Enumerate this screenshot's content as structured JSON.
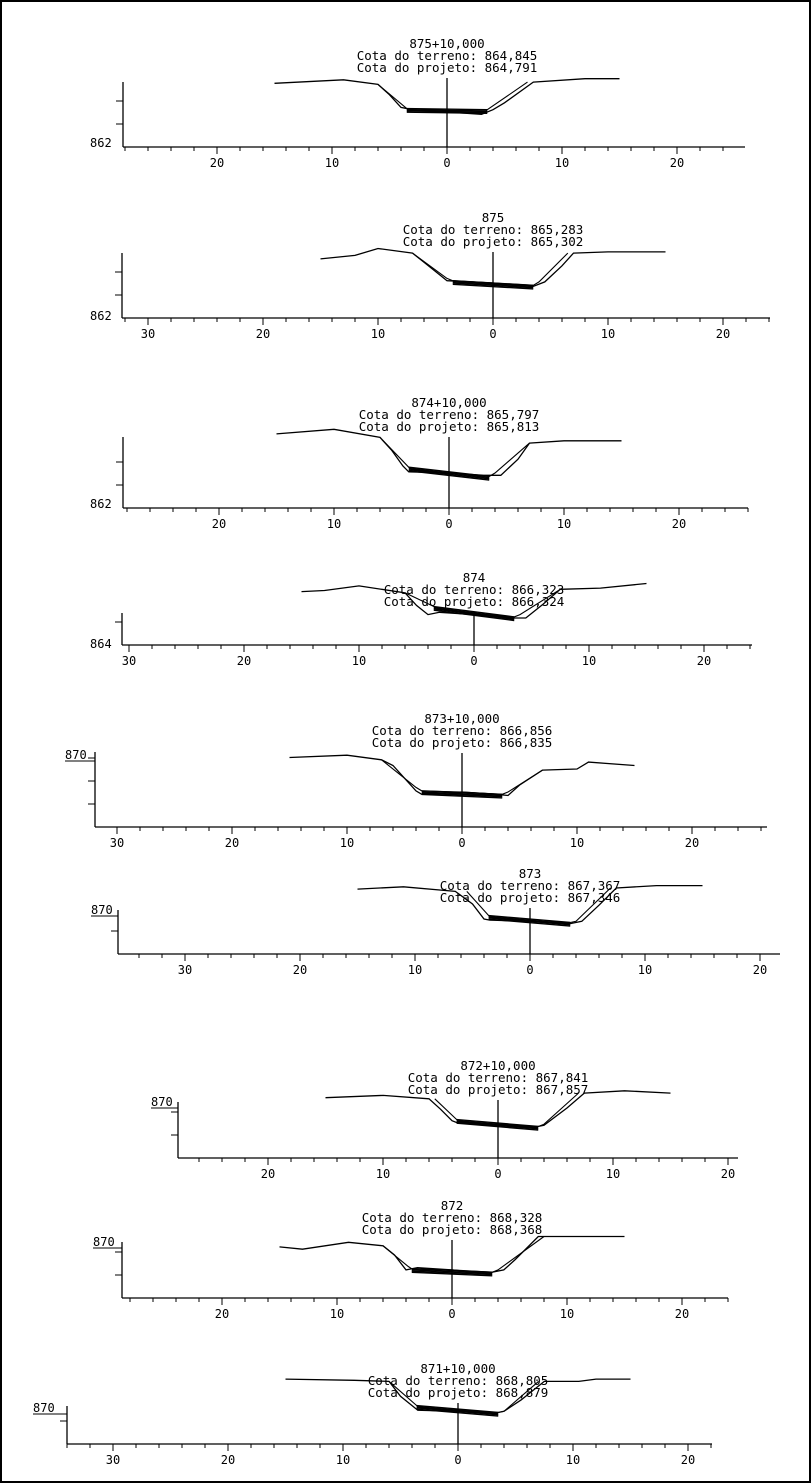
{
  "sheet": {
    "sections": [
      {
        "station": "875+10,000",
        "terrain_label": "Cota do terreno: 864,845",
        "project_label": "Cota do projeto: 864,791",
        "elevation_label": "862",
        "offset_labels": [
          "20",
          "10",
          "0",
          "10",
          "20"
        ],
        "terrain_profile": [
          [
            -15,
            2.5
          ],
          [
            -9,
            2.8
          ],
          [
            -6,
            2.4
          ],
          [
            -5,
            1.5
          ],
          [
            -4,
            0.4
          ],
          [
            -3,
            0.2
          ],
          [
            0,
            0.0
          ],
          [
            3,
            -0.2
          ],
          [
            4,
            0.2
          ],
          [
            5,
            0.8
          ],
          [
            7.5,
            2.6
          ],
          [
            12,
            2.9
          ],
          [
            15,
            2.9
          ]
        ],
        "project_profile": [
          [
            -6,
            2.4
          ],
          [
            -3.5,
            0.3
          ],
          [
            -3.2,
            0.1
          ],
          [
            0,
            0
          ],
          [
            3.2,
            -0.1
          ],
          [
            3.5,
            0.2
          ],
          [
            7,
            2.6
          ]
        ]
      },
      {
        "station": "875",
        "terrain_label": "Cota do terreno: 865,283",
        "project_label": "Cota do projeto: 865,302",
        "elevation_label": "862",
        "offset_labels": [
          "30",
          "20",
          "10",
          "0",
          "10",
          "20"
        ],
        "terrain_profile": [
          [
            -15,
            2.1
          ],
          [
            -12,
            2.4
          ],
          [
            -10,
            3.0
          ],
          [
            -7,
            2.6
          ],
          [
            -6,
            1.8
          ],
          [
            -4.5,
            0.6
          ],
          [
            -4,
            0.2
          ],
          [
            0,
            0
          ],
          [
            3.5,
            -0.3
          ],
          [
            4.5,
            0.1
          ],
          [
            6,
            1.5
          ],
          [
            7,
            2.6
          ],
          [
            10,
            2.7
          ],
          [
            15,
            2.7
          ]
        ],
        "project_profile": [
          [
            -7,
            2.6
          ],
          [
            -4,
            0.4
          ],
          [
            -3.5,
            0.2
          ],
          [
            0,
            0
          ],
          [
            3.5,
            -0.2
          ],
          [
            4,
            0.1
          ],
          [
            6.5,
            2.6
          ]
        ]
      },
      {
        "station": "874+10,000",
        "terrain_label": "Cota do terreno: 865,797",
        "project_label": "Cota do projeto: 865,813",
        "elevation_label": "862",
        "offset_labels": [
          "20",
          "10",
          "0",
          "10",
          "20"
        ],
        "terrain_profile": [
          [
            -15,
            3.4
          ],
          [
            -10,
            3.8
          ],
          [
            -6,
            3.1
          ],
          [
            -5,
            2.0
          ],
          [
            -4,
            0.6
          ],
          [
            -3.5,
            0.1
          ],
          [
            0,
            0
          ],
          [
            3,
            -0.2
          ],
          [
            4.5,
            -0.2
          ],
          [
            6,
            1.2
          ],
          [
            7,
            2.6
          ],
          [
            10,
            2.8
          ],
          [
            15,
            2.8
          ]
        ],
        "project_profile": [
          [
            -6,
            3.1
          ],
          [
            -3.5,
            0.5
          ],
          [
            -3.2,
            0.3
          ],
          [
            0,
            0
          ],
          [
            3.5,
            -0.3
          ],
          [
            4,
            0.0
          ],
          [
            7,
            2.6
          ]
        ]
      },
      {
        "station": "874",
        "terrain_label": "Cota do terreno: 866,323",
        "project_label": "Cota do projeto: 866,324",
        "elevation_label": "864",
        "offset_labels": [
          "30",
          "20",
          "10",
          "0",
          "10",
          "20"
        ],
        "terrain_profile": [
          [
            -15,
            1.6
          ],
          [
            -13,
            1.7
          ],
          [
            -10,
            2.1
          ],
          [
            -6,
            1.5
          ],
          [
            -5,
            0.4
          ],
          [
            -4,
            -0.4
          ],
          [
            -3,
            -0.2
          ],
          [
            0,
            -0.4
          ],
          [
            3,
            -0.7
          ],
          [
            4.5,
            -0.7
          ],
          [
            6,
            0.5
          ],
          [
            7.5,
            1.8
          ],
          [
            11,
            1.9
          ],
          [
            15,
            2.3
          ]
        ],
        "project_profile": [
          [
            -6,
            1.5
          ],
          [
            -3.5,
            0.3
          ],
          [
            -3,
            0.1
          ],
          [
            0,
            -0.3
          ],
          [
            3.5,
            -0.6
          ],
          [
            4,
            -0.4
          ],
          [
            7.5,
            1.8
          ]
        ]
      },
      {
        "station": "873+10,000",
        "terrain_label": "Cota do terreno: 866,856",
        "project_label": "Cota do projeto: 866,835",
        "elevation_label": "870",
        "offset_labels": [
          "30",
          "20",
          "10",
          "0",
          "10",
          "20"
        ],
        "terrain_profile": [
          [
            -15,
            3.0
          ],
          [
            -10,
            3.2
          ],
          [
            -7,
            2.8
          ],
          [
            -6,
            2.3
          ],
          [
            -5,
            1.2
          ],
          [
            -4,
            0.1
          ],
          [
            -3.5,
            -0.2
          ],
          [
            0,
            0
          ],
          [
            3,
            -0.2
          ],
          [
            4,
            -0.3
          ],
          [
            5,
            0.6
          ],
          [
            7,
            1.9
          ],
          [
            10,
            2.0
          ],
          [
            11,
            2.6
          ],
          [
            15,
            2.3
          ]
        ],
        "project_profile": [
          [
            -7,
            2.8
          ],
          [
            -4,
            0.4
          ],
          [
            -3.5,
            0.1
          ],
          [
            0,
            0
          ],
          [
            3.5,
            -0.2
          ],
          [
            4,
            0.0
          ],
          [
            7,
            1.9
          ]
        ]
      },
      {
        "station": "873",
        "terrain_label": "Cota do terreno: 867,367",
        "project_label": "Cota do projeto: 867,346",
        "elevation_label": "870",
        "offset_labels": [
          "30",
          "20",
          "10",
          "0",
          "10",
          "20"
        ],
        "terrain_profile": [
          [
            -15,
            2.6
          ],
          [
            -11,
            2.8
          ],
          [
            -6.5,
            2.4
          ],
          [
            -5,
            1.3
          ],
          [
            -4,
            0.0
          ],
          [
            -3.5,
            -0.1
          ],
          [
            0,
            -0.2
          ],
          [
            3.5,
            -0.4
          ],
          [
            4.5,
            -0.2
          ],
          [
            6,
            1.2
          ],
          [
            7.5,
            2.7
          ],
          [
            11,
            2.9
          ],
          [
            15,
            2.9
          ]
        ],
        "project_profile": [
          [
            -5.5,
            2.4
          ],
          [
            -3.6,
            0.3
          ],
          [
            -3.4,
            0.1
          ],
          [
            0,
            -0.2
          ],
          [
            3.5,
            -0.3
          ],
          [
            4,
            -0.2
          ],
          [
            7,
            2.7
          ]
        ]
      },
      {
        "station": "872+10,000",
        "terrain_label": "Cota do terreno: 867,841",
        "project_label": "Cota do projeto: 867,857",
        "elevation_label": "870",
        "offset_labels": [
          "20",
          "10",
          "0",
          "10",
          "20"
        ],
        "terrain_profile": [
          [
            -15,
            2.2
          ],
          [
            -10,
            2.4
          ],
          [
            -6,
            2.1
          ],
          [
            -5,
            1.2
          ],
          [
            -4,
            0.2
          ],
          [
            -3.5,
            0.0
          ],
          [
            0,
            -0.2
          ],
          [
            3,
            -0.4
          ],
          [
            4,
            -0.2
          ],
          [
            6,
            1.3
          ],
          [
            7.5,
            2.6
          ],
          [
            11,
            2.8
          ],
          [
            15,
            2.6
          ]
        ],
        "project_profile": [
          [
            -5.5,
            2.1
          ],
          [
            -3.6,
            0.3
          ],
          [
            -3.4,
            0.1
          ],
          [
            0,
            -0.1
          ],
          [
            3.5,
            -0.3
          ],
          [
            4,
            -0.1
          ],
          [
            7,
            2.6
          ]
        ]
      },
      {
        "station": "872",
        "terrain_label": "Cota do terreno: 868,328",
        "project_label": "Cota do projeto: 868,368",
        "elevation_label": "870",
        "offset_labels": [
          "20",
          "10",
          "0",
          "10",
          "20"
        ],
        "terrain_profile": [
          [
            -15,
            1.4
          ],
          [
            -13,
            1.2
          ],
          [
            -9,
            1.8
          ],
          [
            -6,
            1.5
          ],
          [
            -5,
            0.7
          ],
          [
            -4,
            -0.6
          ],
          [
            -3,
            -0.4
          ],
          [
            0,
            -0.6
          ],
          [
            3,
            -0.9
          ],
          [
            4.5,
            -0.6
          ],
          [
            5.5,
            0.3
          ],
          [
            7.5,
            2.3
          ],
          [
            11,
            2.3
          ],
          [
            15,
            2.3
          ]
        ],
        "project_profile": [
          [
            -6,
            1.5
          ],
          [
            -3.8,
            -0.3
          ],
          [
            -3.5,
            -0.5
          ],
          [
            0,
            -0.6
          ],
          [
            3.5,
            -0.8
          ],
          [
            4,
            -0.6
          ],
          [
            8,
            2.3
          ]
        ]
      },
      {
        "station": "871+10,000",
        "terrain_label": "Cota do terreno: 868,805",
        "project_label": "Cota do projeto: 868,879",
        "elevation_label": "870",
        "offset_labels": [
          "30",
          "20",
          "10",
          "0",
          "10",
          "20"
        ],
        "terrain_profile": [
          [
            -15,
            2.6
          ],
          [
            -9,
            2.5
          ],
          [
            -6,
            2.4
          ],
          [
            -5,
            1.1
          ],
          [
            -3.5,
            -0.1
          ],
          [
            0,
            -0.2
          ],
          [
            3,
            -0.4
          ],
          [
            4,
            -0.2
          ],
          [
            5.5,
            0.8
          ],
          [
            7.5,
            2.4
          ],
          [
            10.5,
            2.4
          ],
          [
            12,
            2.6
          ],
          [
            15,
            2.6
          ]
        ],
        "project_profile": [
          [
            -6,
            2.4
          ],
          [
            -3.6,
            0.3
          ],
          [
            -3.4,
            0.1
          ],
          [
            0,
            -0.1
          ],
          [
            3.5,
            -0.3
          ],
          [
            4,
            -0.2
          ],
          [
            7,
            2.4
          ]
        ]
      }
    ]
  }
}
